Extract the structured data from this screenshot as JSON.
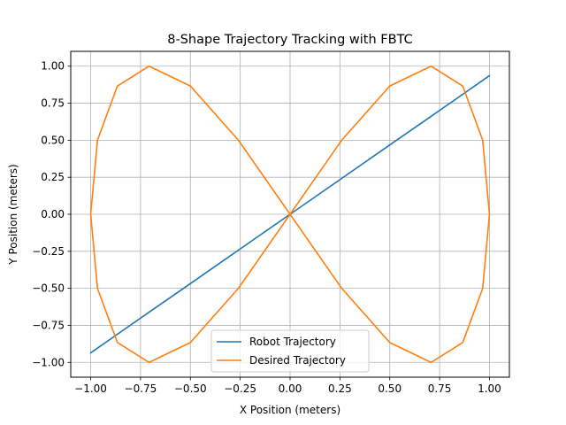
{
  "chart_data": {
    "type": "line",
    "title": "8-Shape Trajectory Tracking with FBTC",
    "xlabel": "X Position (meters)",
    "ylabel": "Y Position (meters)",
    "xlim": [
      -1.1,
      1.1
    ],
    "ylim": [
      -1.1,
      1.1
    ],
    "grid": true,
    "legend_position": "bottom-center",
    "x_ticks": [
      "−1.00",
      "−0.75",
      "−0.50",
      "−0.25",
      "0.00",
      "0.25",
      "0.50",
      "0.75",
      "1.00"
    ],
    "y_ticks": [
      "−1.00",
      "−0.75",
      "−0.50",
      "−0.25",
      "0.00",
      "0.25",
      "0.50",
      "0.75",
      "1.00"
    ],
    "x_tick_values": [
      -1.0,
      -0.75,
      -0.5,
      -0.25,
      0.0,
      0.25,
      0.5,
      0.75,
      1.0
    ],
    "y_tick_values": [
      -1.0,
      -0.75,
      -0.5,
      -0.25,
      0.0,
      0.25,
      0.5,
      0.75,
      1.0
    ],
    "series": [
      {
        "name": "Robot Trajectory",
        "color": "#1f77b4",
        "x": [
          0.0,
          0.259,
          0.5,
          0.707,
          0.866,
          0.966,
          1.0,
          0.966,
          0.866,
          0.707,
          0.5,
          0.259,
          0.0,
          -0.259,
          -0.5,
          -0.707,
          -0.866,
          -0.966,
          -1.0,
          -0.966,
          -0.866,
          -0.707,
          -0.5,
          -0.259,
          0.0,
          0.259,
          0.5,
          0.707,
          0.866,
          0.966,
          1.0,
          0.966,
          0.866,
          0.707,
          0.5,
          0.259,
          0.0,
          -0.259,
          -0.5,
          -0.707,
          -0.866,
          -0.966,
          -1.0,
          -0.966,
          -0.866,
          -0.707,
          -0.5,
          -0.259,
          0.0
        ],
        "y": [
          0.0,
          0.242,
          0.468,
          0.661,
          0.81,
          0.904,
          0.936,
          0.904,
          0.81,
          0.661,
          0.468,
          0.242,
          0.0,
          -0.242,
          -0.468,
          -0.661,
          -0.81,
          -0.904,
          -0.936,
          -0.904,
          -0.81,
          -0.661,
          -0.468,
          -0.242,
          0.0,
          0.242,
          0.468,
          0.661,
          0.81,
          0.904,
          0.936,
          0.904,
          0.81,
          0.661,
          0.468,
          0.242,
          0.0,
          -0.242,
          -0.468,
          -0.661,
          -0.81,
          -0.904,
          -0.936,
          -0.904,
          -0.81,
          -0.661,
          -0.468,
          -0.242,
          0.0
        ]
      },
      {
        "name": "Desired Trajectory",
        "color": "#ff7f0e",
        "x": [
          0.0,
          0.259,
          0.5,
          0.707,
          0.866,
          0.966,
          1.0,
          0.966,
          0.866,
          0.707,
          0.5,
          0.259,
          0.0,
          -0.259,
          -0.5,
          -0.707,
          -0.866,
          -0.966,
          -1.0,
          -0.966,
          -0.866,
          -0.707,
          -0.5,
          -0.259,
          0.0,
          0.259,
          0.5,
          0.707,
          0.866,
          0.966,
          1.0,
          0.966,
          0.866,
          0.707,
          0.5,
          0.259,
          0.0,
          -0.259,
          -0.5,
          -0.707,
          -0.866,
          -0.966,
          -1.0,
          -0.966,
          -0.866,
          -0.707,
          -0.5,
          -0.259,
          0.0
        ],
        "y": [
          0.0,
          0.5,
          0.866,
          1.0,
          0.866,
          0.5,
          0.0,
          -0.5,
          -0.866,
          -1.0,
          -0.866,
          -0.5,
          0.0,
          0.5,
          0.866,
          1.0,
          0.866,
          0.5,
          0.0,
          -0.5,
          -0.866,
          -1.0,
          -0.866,
          -0.5,
          0.0,
          0.5,
          0.866,
          1.0,
          0.866,
          0.5,
          0.0,
          -0.5,
          -0.866,
          -1.0,
          -0.866,
          -0.5,
          0.0,
          0.5,
          0.866,
          1.0,
          0.866,
          0.5,
          0.0,
          -0.5,
          -0.866,
          -1.0,
          -0.866,
          -0.5,
          0.0
        ]
      }
    ]
  }
}
